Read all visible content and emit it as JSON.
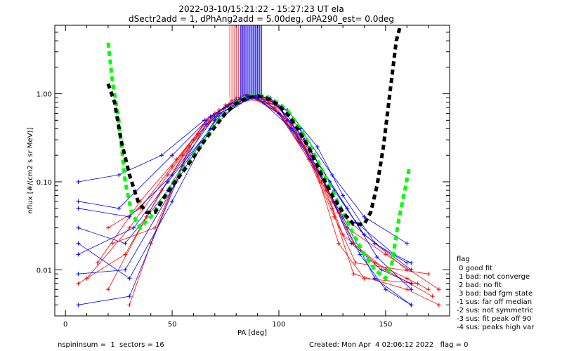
{
  "chart_data": {
    "type": "line",
    "title": "2022-03-10/15:21:22 - 15:27:23 UT ela",
    "subtitle": "dSectr2add = 1, dPhAng2add = 5.00deg, dPA290_est=    0.0deg",
    "xlabel": "PA [deg]",
    "ylabel": "nflux [#/(cm2 s sr MeV)]",
    "xlim": [
      -5,
      180
    ],
    "ylim": [
      0.003,
      6
    ],
    "yscale": "log",
    "x_ticks": [
      0,
      50,
      100,
      150
    ],
    "x_tick_labels": [
      "0",
      "50",
      "100",
      "150"
    ],
    "y_ticks": [
      0.01,
      0.1,
      1.0
    ],
    "y_tick_labels": [
      "0.01",
      "0.10",
      "1.00"
    ],
    "colors": {
      "red": "#ff0000",
      "blue": "#0000ff",
      "green": "#00ff00",
      "black": "#000000"
    },
    "series": [
      {
        "color": "green",
        "style": "dashed-thick",
        "points": [
          [
            20,
            3.8
          ],
          [
            22,
            1.4
          ],
          [
            25,
            0.5
          ],
          [
            28,
            0.1
          ],
          [
            31,
            0.045
          ],
          [
            35,
            0.03
          ],
          [
            40,
            0.04
          ],
          [
            45,
            0.06
          ],
          [
            50,
            0.095
          ],
          [
            55,
            0.14
          ],
          [
            60,
            0.2
          ],
          [
            65,
            0.3
          ],
          [
            70,
            0.45
          ],
          [
            75,
            0.62
          ],
          [
            80,
            0.8
          ],
          [
            85,
            0.93
          ],
          [
            90,
            0.97
          ],
          [
            95,
            0.9
          ],
          [
            100,
            0.78
          ],
          [
            105,
            0.6
          ],
          [
            110,
            0.4
          ],
          [
            115,
            0.25
          ],
          [
            120,
            0.14
          ],
          [
            125,
            0.08
          ],
          [
            130,
            0.045
          ],
          [
            135,
            0.025
          ],
          [
            140,
            0.015
          ],
          [
            145,
            0.01
          ],
          [
            150,
            0.008
          ],
          [
            153,
            0.012
          ],
          [
            156,
            0.035
          ],
          [
            159,
            0.08
          ],
          [
            161,
            0.14
          ]
        ]
      },
      {
        "color": "black",
        "style": "dashed-thick",
        "points": [
          [
            20,
            1.3
          ],
          [
            23,
            0.8
          ],
          [
            26,
            0.3
          ],
          [
            30,
            0.12
          ],
          [
            34,
            0.06
          ],
          [
            38,
            0.045
          ],
          [
            42,
            0.045
          ],
          [
            46,
            0.065
          ],
          [
            50,
            0.09
          ],
          [
            55,
            0.13
          ],
          [
            60,
            0.19
          ],
          [
            65,
            0.29
          ],
          [
            70,
            0.42
          ],
          [
            75,
            0.6
          ],
          [
            80,
            0.78
          ],
          [
            85,
            0.9
          ],
          [
            90,
            0.95
          ],
          [
            95,
            0.88
          ],
          [
            100,
            0.74
          ],
          [
            105,
            0.55
          ],
          [
            110,
            0.36
          ],
          [
            115,
            0.22
          ],
          [
            120,
            0.12
          ],
          [
            125,
            0.07
          ],
          [
            130,
            0.045
          ],
          [
            135,
            0.033
          ],
          [
            140,
            0.033
          ],
          [
            143,
            0.045
          ],
          [
            146,
            0.09
          ],
          [
            149,
            0.25
          ],
          [
            152,
            1.0
          ],
          [
            155,
            4.0
          ],
          [
            157,
            6.0
          ]
        ]
      }
    ],
    "red_curves": [
      [
        [
          20,
          0.03
        ],
        [
          35,
          0.05
        ],
        [
          50,
          0.15
        ],
        [
          65,
          0.45
        ],
        [
          80,
          0.9
        ],
        [
          90,
          0.95
        ],
        [
          100,
          0.7
        ],
        [
          115,
          0.2
        ],
        [
          125,
          0.06
        ],
        [
          135,
          0.02
        ],
        [
          145,
          0.012
        ],
        [
          160,
          0.008
        ],
        [
          170,
          0.006
        ]
      ],
      [
        [
          10,
          0.008
        ],
        [
          30,
          0.03
        ],
        [
          48,
          0.12
        ],
        [
          66,
          0.5
        ],
        [
          84,
          0.96
        ],
        [
          96,
          0.85
        ],
        [
          110,
          0.3
        ],
        [
          122,
          0.08
        ],
        [
          130,
          0.025
        ],
        [
          150,
          0.01
        ],
        [
          172,
          0.005
        ]
      ],
      [
        [
          20,
          0.006
        ],
        [
          38,
          0.04
        ],
        [
          55,
          0.2
        ],
        [
          70,
          0.6
        ],
        [
          86,
          0.95
        ],
        [
          100,
          0.6
        ],
        [
          112,
          0.25
        ],
        [
          125,
          0.05
        ],
        [
          135,
          0.009
        ],
        [
          160,
          0.006
        ],
        [
          175,
          0.004
        ]
      ],
      [
        [
          30,
          0.004
        ],
        [
          40,
          0.02
        ],
        [
          58,
          0.25
        ],
        [
          75,
          0.75
        ],
        [
          88,
          0.92
        ],
        [
          102,
          0.55
        ],
        [
          118,
          0.12
        ],
        [
          128,
          0.02
        ],
        [
          140,
          0.008
        ],
        [
          165,
          0.007
        ]
      ],
      [
        [
          15,
          0.012
        ],
        [
          35,
          0.06
        ],
        [
          52,
          0.18
        ],
        [
          68,
          0.55
        ],
        [
          82,
          0.88
        ],
        [
          95,
          0.8
        ],
        [
          108,
          0.35
        ],
        [
          120,
          0.1
        ],
        [
          132,
          0.03
        ],
        [
          150,
          0.015
        ],
        [
          175,
          0.006
        ]
      ],
      [
        [
          22,
          0.02
        ],
        [
          42,
          0.03
        ],
        [
          60,
          0.3
        ],
        [
          72,
          0.65
        ],
        [
          85,
          0.98
        ],
        [
          98,
          0.7
        ],
        [
          114,
          0.18
        ],
        [
          126,
          0.04
        ],
        [
          136,
          0.012
        ],
        [
          170,
          0.009
        ]
      ],
      [
        [
          6,
          0.007
        ],
        [
          28,
          0.015
        ],
        [
          45,
          0.08
        ],
        [
          62,
          0.35
        ],
        [
          78,
          0.85
        ],
        [
          92,
          0.9
        ],
        [
          106,
          0.45
        ],
        [
          118,
          0.14
        ],
        [
          128,
          0.045
        ],
        [
          145,
          0.02
        ],
        [
          160,
          0.01
        ]
      ]
    ],
    "blue_curves": [
      [
        [
          6,
          0.1
        ],
        [
          25,
          0.12
        ],
        [
          45,
          0.2
        ],
        [
          65,
          0.5
        ],
        [
          80,
          0.85
        ],
        [
          92,
          0.95
        ],
        [
          104,
          0.65
        ],
        [
          118,
          0.25
        ],
        [
          130,
          0.07
        ],
        [
          145,
          0.02
        ],
        [
          160,
          0.012
        ]
      ],
      [
        [
          6,
          0.05
        ],
        [
          30,
          0.04
        ],
        [
          50,
          0.12
        ],
        [
          70,
          0.55
        ],
        [
          86,
          0.93
        ],
        [
          98,
          0.8
        ],
        [
          112,
          0.3
        ],
        [
          126,
          0.08
        ],
        [
          140,
          0.025
        ],
        [
          162,
          0.01
        ]
      ],
      [
        [
          6,
          0.02
        ],
        [
          30,
          0.008
        ],
        [
          50,
          0.06
        ],
        [
          70,
          0.5
        ],
        [
          88,
          0.95
        ],
        [
          100,
          0.6
        ],
        [
          115,
          0.18
        ],
        [
          130,
          0.04
        ],
        [
          145,
          0.008
        ],
        [
          162,
          0.004
        ]
      ],
      [
        [
          6,
          0.009
        ],
        [
          28,
          0.01
        ],
        [
          52,
          0.1
        ],
        [
          72,
          0.6
        ],
        [
          90,
          0.96
        ],
        [
          104,
          0.5
        ],
        [
          120,
          0.12
        ],
        [
          134,
          0.02
        ],
        [
          148,
          0.01
        ],
        [
          162,
          0.007
        ]
      ],
      [
        [
          6,
          0.004
        ],
        [
          30,
          0.005
        ],
        [
          55,
          0.15
        ],
        [
          75,
          0.7
        ],
        [
          90,
          0.9
        ],
        [
          106,
          0.4
        ],
        [
          122,
          0.09
        ],
        [
          138,
          0.015
        ],
        [
          150,
          0.006
        ],
        [
          162,
          0.004
        ]
      ],
      [
        [
          6,
          0.015
        ],
        [
          32,
          0.03
        ],
        [
          48,
          0.1
        ],
        [
          68,
          0.4
        ],
        [
          84,
          0.9
        ],
        [
          96,
          0.9
        ],
        [
          110,
          0.35
        ],
        [
          124,
          0.1
        ],
        [
          136,
          0.035
        ],
        [
          154,
          0.015
        ],
        [
          162,
          0.012
        ]
      ],
      [
        [
          6,
          0.06
        ],
        [
          25,
          0.05
        ],
        [
          50,
          0.2
        ],
        [
          68,
          0.55
        ],
        [
          82,
          0.9
        ],
        [
          95,
          0.92
        ],
        [
          110,
          0.4
        ],
        [
          125,
          0.12
        ],
        [
          140,
          0.04
        ],
        [
          160,
          0.02
        ]
      ],
      [
        [
          6,
          0.03
        ],
        [
          28,
          0.02
        ],
        [
          48,
          0.08
        ],
        [
          66,
          0.45
        ],
        [
          85,
          0.94
        ],
        [
          100,
          0.72
        ],
        [
          116,
          0.2
        ],
        [
          132,
          0.05
        ],
        [
          146,
          0.014
        ],
        [
          162,
          0.006
        ]
      ]
    ],
    "red_spike_band": [
      77,
      86
    ],
    "blue_spike_band": [
      82,
      92
    ],
    "flag_legend_title": "flag",
    "flag_legend": [
      " 0 good fit",
      " 1 bad: not converge",
      " 2 bad: no fit",
      " 3 bad: bad fgm state",
      "-1 sus: far off median",
      "-2 sus: not symmetric",
      "-3 sus: fit peak off 90",
      "-4 sus: peaks high var"
    ],
    "footer_left": "nspininsum =  1  sectors = 16",
    "footer_right": "Created: Mon Apr  4 02:06:12 2022   flag = 0"
  }
}
